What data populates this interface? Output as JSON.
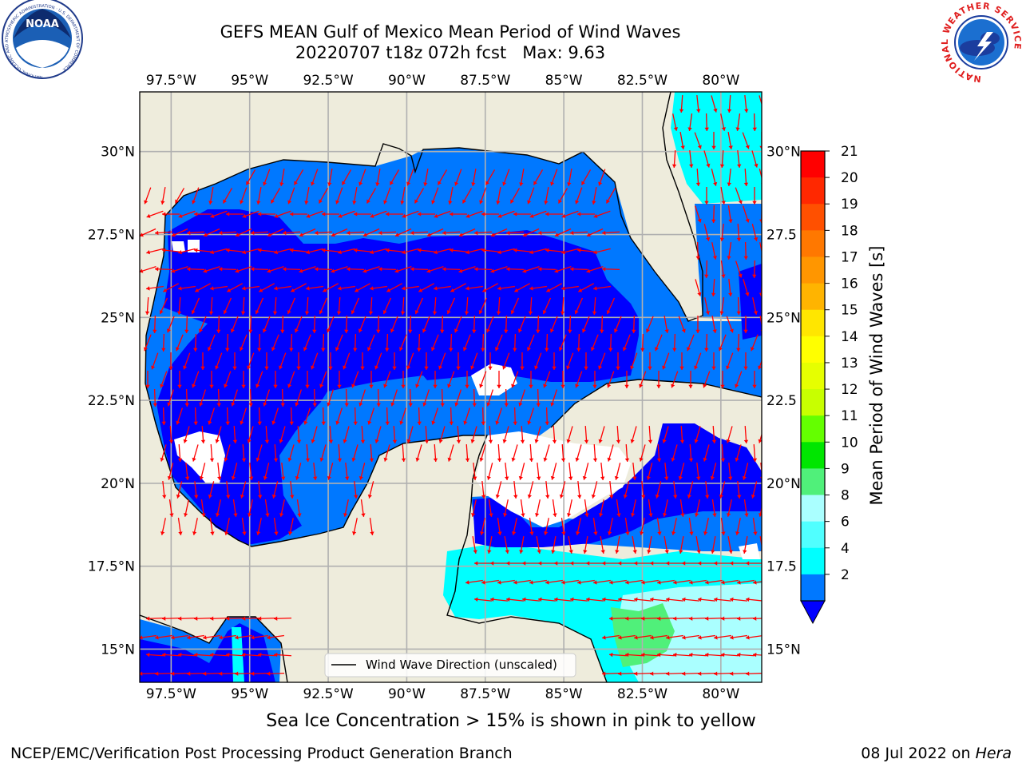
{
  "title": {
    "line1": "GEFS MEAN Gulf of Mexico Mean Period of Wind Waves",
    "line2": "20220707 t18z 072h fcst   Max: 9.63"
  },
  "map": {
    "lon_min": -98.5,
    "lon_max": -78.7,
    "lat_min": 14.0,
    "lat_max": 31.8,
    "lon_ticks": [
      {
        "value": -97.5,
        "label": "97.5°W"
      },
      {
        "value": -95,
        "label": "95°W"
      },
      {
        "value": -92.5,
        "label": "92.5°W"
      },
      {
        "value": -90,
        "label": "90°W"
      },
      {
        "value": -87.5,
        "label": "87.5°W"
      },
      {
        "value": -85,
        "label": "85°W"
      },
      {
        "value": -82.5,
        "label": "82.5°W"
      },
      {
        "value": -80,
        "label": "80°W"
      }
    ],
    "lat_ticks_left": [
      {
        "value": 30,
        "label": "30°N"
      },
      {
        "value": 27.5,
        "label": "27.5°N"
      },
      {
        "value": 25,
        "label": "25°N"
      },
      {
        "value": 22.5,
        "label": "22.5°N"
      },
      {
        "value": 20,
        "label": "20°N"
      },
      {
        "value": 17.5,
        "label": "17.5°N"
      },
      {
        "value": 15,
        "label": "15°N"
      }
    ],
    "lat_ticks_right": [
      {
        "value": 30,
        "label": "30°N"
      },
      {
        "value": 27.5,
        "label": "27.5"
      },
      {
        "value": 25,
        "label": "25°N"
      },
      {
        "value": 22.5,
        "label": "22.5"
      },
      {
        "value": 20,
        "label": "20°N"
      },
      {
        "value": 17.5,
        "label": "17.5"
      },
      {
        "value": 15,
        "label": "15°N"
      }
    ],
    "land_color": "#eeecdc",
    "grid_color": "#b0b0b0",
    "arrow_color": "#ff0000",
    "legend_label": "Wind Wave Direction (unscaled)"
  },
  "colorbar": {
    "label": "Mean Period of Wind Waves [s]",
    "ticks": [
      "21",
      "20",
      "19",
      "18",
      "17",
      "16",
      "15",
      "14",
      "13",
      "12",
      "11",
      "10",
      "9",
      "8",
      "6",
      "4",
      "2"
    ],
    "colors": [
      "#ff0000",
      "#ff2800",
      "#ff5000",
      "#ff7800",
      "#ff9600",
      "#ffb400",
      "#ffe600",
      "#ffff00",
      "#e6ff00",
      "#c8ff00",
      "#64ff00",
      "#00e600",
      "#50f07a",
      "#aaffff",
      "#50ffff",
      "#00ffff",
      "#0078ff"
    ],
    "extend_color": "#0000ff"
  },
  "footer": {
    "ice_note": "Sea Ice Concentration > 15% is shown in pink to yellow",
    "credit": "NCEP/EMC/Verification Post Processing Product Generation Branch",
    "date_prefix": "08 Jul 2022 on ",
    "date_host": "Hera"
  },
  "logos": {
    "noaa_text": "NOAA",
    "noaa_ring_text": "NATIONAL OCEANIC AND ATMOSPHERIC ADMINISTRATION · U.S. DEPARTMENT OF COMMERCE",
    "nws_ring_text": "NATIONAL WEATHER SERVICE"
  }
}
